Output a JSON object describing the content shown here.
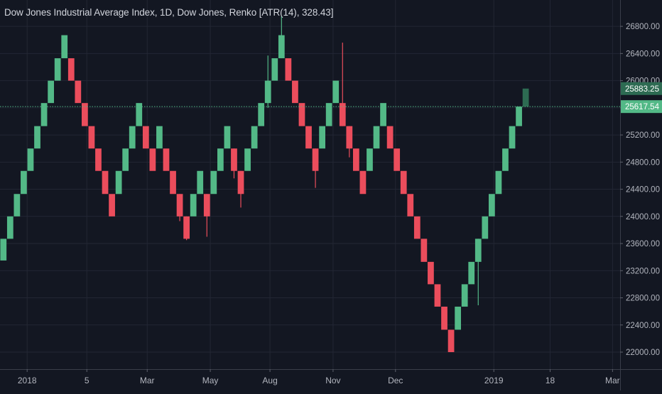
{
  "chart_data": {
    "type": "renko",
    "title": "Dow Jones Industrial Average Index, 1D, Dow Jones, Renko [ATR(14), 328.43]",
    "box_size": 328.43,
    "up_color": "#53b987",
    "down_color": "#eb4d5c",
    "background": "#131722",
    "grid": true,
    "ylim": [
      21800,
      26950
    ],
    "y_ticks": [
      "26800.00",
      "26400.00",
      "26000.00",
      "25600.00",
      "25200.00",
      "24800.00",
      "24400.00",
      "24000.00",
      "23600.00",
      "23200.00",
      "22800.00",
      "22400.00",
      "22000.00"
    ],
    "y_tick_values": [
      26800,
      26400,
      26000,
      25600,
      25200,
      24800,
      24400,
      24000,
      23600,
      23200,
      22800,
      22400,
      22000
    ],
    "x_ticks": [
      "2018",
      "5",
      "Mar",
      "May",
      "Aug",
      "Nov",
      "Dec",
      "2019",
      "18",
      "Mar"
    ],
    "x_tick_index": [
      3.5,
      12.3,
      21.2,
      30.5,
      39.3,
      48.6,
      57.8,
      72.3,
      80.6,
      89.8
    ],
    "n_slots": 92,
    "bricks": [
      {
        "dir": "up",
        "low": 23350,
        "high": 23670
      },
      {
        "dir": "up",
        "low": 23670,
        "high": 24000
      },
      {
        "dir": "up",
        "low": 24000,
        "high": 24330
      },
      {
        "dir": "up",
        "low": 24330,
        "high": 24670
      },
      {
        "dir": "up",
        "low": 24670,
        "high": 25000
      },
      {
        "dir": "up",
        "low": 25000,
        "high": 25330
      },
      {
        "dir": "up",
        "low": 25330,
        "high": 25670
      },
      {
        "dir": "up",
        "low": 25670,
        "high": 26000
      },
      {
        "dir": "up",
        "low": 26000,
        "high": 26330
      },
      {
        "dir": "up",
        "low": 26330,
        "high": 26670
      },
      {
        "dir": "down",
        "low": 26000,
        "high": 26330
      },
      {
        "dir": "down",
        "low": 25670,
        "high": 26000
      },
      {
        "dir": "down",
        "low": 25330,
        "high": 25670
      },
      {
        "dir": "down",
        "low": 25000,
        "high": 25330
      },
      {
        "dir": "down",
        "low": 24670,
        "high": 25000
      },
      {
        "dir": "down",
        "low": 24330,
        "high": 24670
      },
      {
        "dir": "down",
        "low": 24000,
        "high": 24330
      },
      {
        "dir": "up",
        "low": 24330,
        "high": 24670
      },
      {
        "dir": "up",
        "low": 24670,
        "high": 25000
      },
      {
        "dir": "up",
        "low": 25000,
        "high": 25330
      },
      {
        "dir": "up",
        "low": 25330,
        "high": 25670
      },
      {
        "dir": "down",
        "low": 25000,
        "high": 25330
      },
      {
        "dir": "down",
        "low": 24670,
        "high": 25000
      },
      {
        "dir": "up",
        "low": 25000,
        "high": 25330
      },
      {
        "dir": "down",
        "low": 24670,
        "high": 25000
      },
      {
        "dir": "down",
        "low": 24330,
        "high": 24670
      },
      {
        "dir": "down",
        "low": 24000,
        "high": 24330
      },
      {
        "dir": "down",
        "low": 23670,
        "high": 24000
      },
      {
        "dir": "up",
        "low": 24000,
        "high": 24330
      },
      {
        "dir": "up",
        "low": 24330,
        "high": 24670
      },
      {
        "dir": "down",
        "low": 24000,
        "high": 24330
      },
      {
        "dir": "up",
        "low": 24330,
        "high": 24670
      },
      {
        "dir": "up",
        "low": 24670,
        "high": 25000
      },
      {
        "dir": "up",
        "low": 25000,
        "high": 25330
      },
      {
        "dir": "down",
        "low": 24670,
        "high": 25000
      },
      {
        "dir": "down",
        "low": 24330,
        "high": 24670
      },
      {
        "dir": "up",
        "low": 24670,
        "high": 25000
      },
      {
        "dir": "up",
        "low": 25000,
        "high": 25330
      },
      {
        "dir": "up",
        "low": 25330,
        "high": 25670
      },
      {
        "dir": "up",
        "low": 25670,
        "high": 26000
      },
      {
        "dir": "up",
        "low": 26000,
        "high": 26330
      },
      {
        "dir": "up",
        "low": 26330,
        "high": 26670
      },
      {
        "dir": "down",
        "low": 26000,
        "high": 26330
      },
      {
        "dir": "down",
        "low": 25670,
        "high": 26000
      },
      {
        "dir": "down",
        "low": 25330,
        "high": 25670
      },
      {
        "dir": "down",
        "low": 25000,
        "high": 25330
      },
      {
        "dir": "down",
        "low": 24670,
        "high": 25000
      },
      {
        "dir": "up",
        "low": 25000,
        "high": 25330
      },
      {
        "dir": "up",
        "low": 25330,
        "high": 25670
      },
      {
        "dir": "up",
        "low": 25670,
        "high": 26000
      },
      {
        "dir": "down",
        "low": 25330,
        "high": 25670
      },
      {
        "dir": "down",
        "low": 25000,
        "high": 25330
      },
      {
        "dir": "down",
        "low": 24670,
        "high": 25000
      },
      {
        "dir": "down",
        "low": 24330,
        "high": 24670
      },
      {
        "dir": "up",
        "low": 24670,
        "high": 25000
      },
      {
        "dir": "up",
        "low": 25000,
        "high": 25330
      },
      {
        "dir": "up",
        "low": 25330,
        "high": 25670
      },
      {
        "dir": "down",
        "low": 25000,
        "high": 25330
      },
      {
        "dir": "down",
        "low": 24670,
        "high": 25000
      },
      {
        "dir": "down",
        "low": 24330,
        "high": 24670
      },
      {
        "dir": "down",
        "low": 24000,
        "high": 24330
      },
      {
        "dir": "down",
        "low": 23670,
        "high": 24000
      },
      {
        "dir": "down",
        "low": 23330,
        "high": 23670
      },
      {
        "dir": "down",
        "low": 23000,
        "high": 23330
      },
      {
        "dir": "down",
        "low": 22670,
        "high": 23000
      },
      {
        "dir": "down",
        "low": 22330,
        "high": 22670
      },
      {
        "dir": "down",
        "low": 22000,
        "high": 22330
      },
      {
        "dir": "up",
        "low": 22330,
        "high": 22670
      },
      {
        "dir": "up",
        "low": 22670,
        "high": 23000
      },
      {
        "dir": "up",
        "low": 23000,
        "high": 23330
      },
      {
        "dir": "up",
        "low": 23330,
        "high": 23670
      },
      {
        "dir": "up",
        "low": 23670,
        "high": 24000
      },
      {
        "dir": "up",
        "low": 24000,
        "high": 24330
      },
      {
        "dir": "up",
        "low": 24330,
        "high": 24670
      },
      {
        "dir": "up",
        "low": 24670,
        "high": 25000
      },
      {
        "dir": "up",
        "low": 25000,
        "high": 25330
      },
      {
        "dir": "up",
        "low": 25330,
        "high": 25617.54
      }
    ],
    "projected_brick": {
      "low": 25617.54,
      "high": 25883.25
    },
    "wicks": [
      {
        "i": 26,
        "low": 23930,
        "high": 24330
      },
      {
        "i": 27,
        "low": 23650,
        "high": 24000
      },
      {
        "i": 30,
        "low": 23700,
        "high": 24330
      },
      {
        "i": 34,
        "low": 24560,
        "high": 25000
      },
      {
        "i": 35,
        "low": 24130,
        "high": 24670
      },
      {
        "i": 39,
        "low": 25600,
        "high": 26370
      },
      {
        "i": 41,
        "low": 26330,
        "high": 26950
      },
      {
        "i": 46,
        "low": 24420,
        "high": 25000
      },
      {
        "i": 50,
        "low": 25330,
        "high": 26560
      },
      {
        "i": 51,
        "low": 24870,
        "high": 25330
      },
      {
        "i": 70,
        "low": 22690,
        "high": 23670
      }
    ],
    "price_labels": {
      "projected": "25883.25",
      "current": "25617.54",
      "current_value": 25617.54,
      "projected_value": 25883.25
    }
  }
}
